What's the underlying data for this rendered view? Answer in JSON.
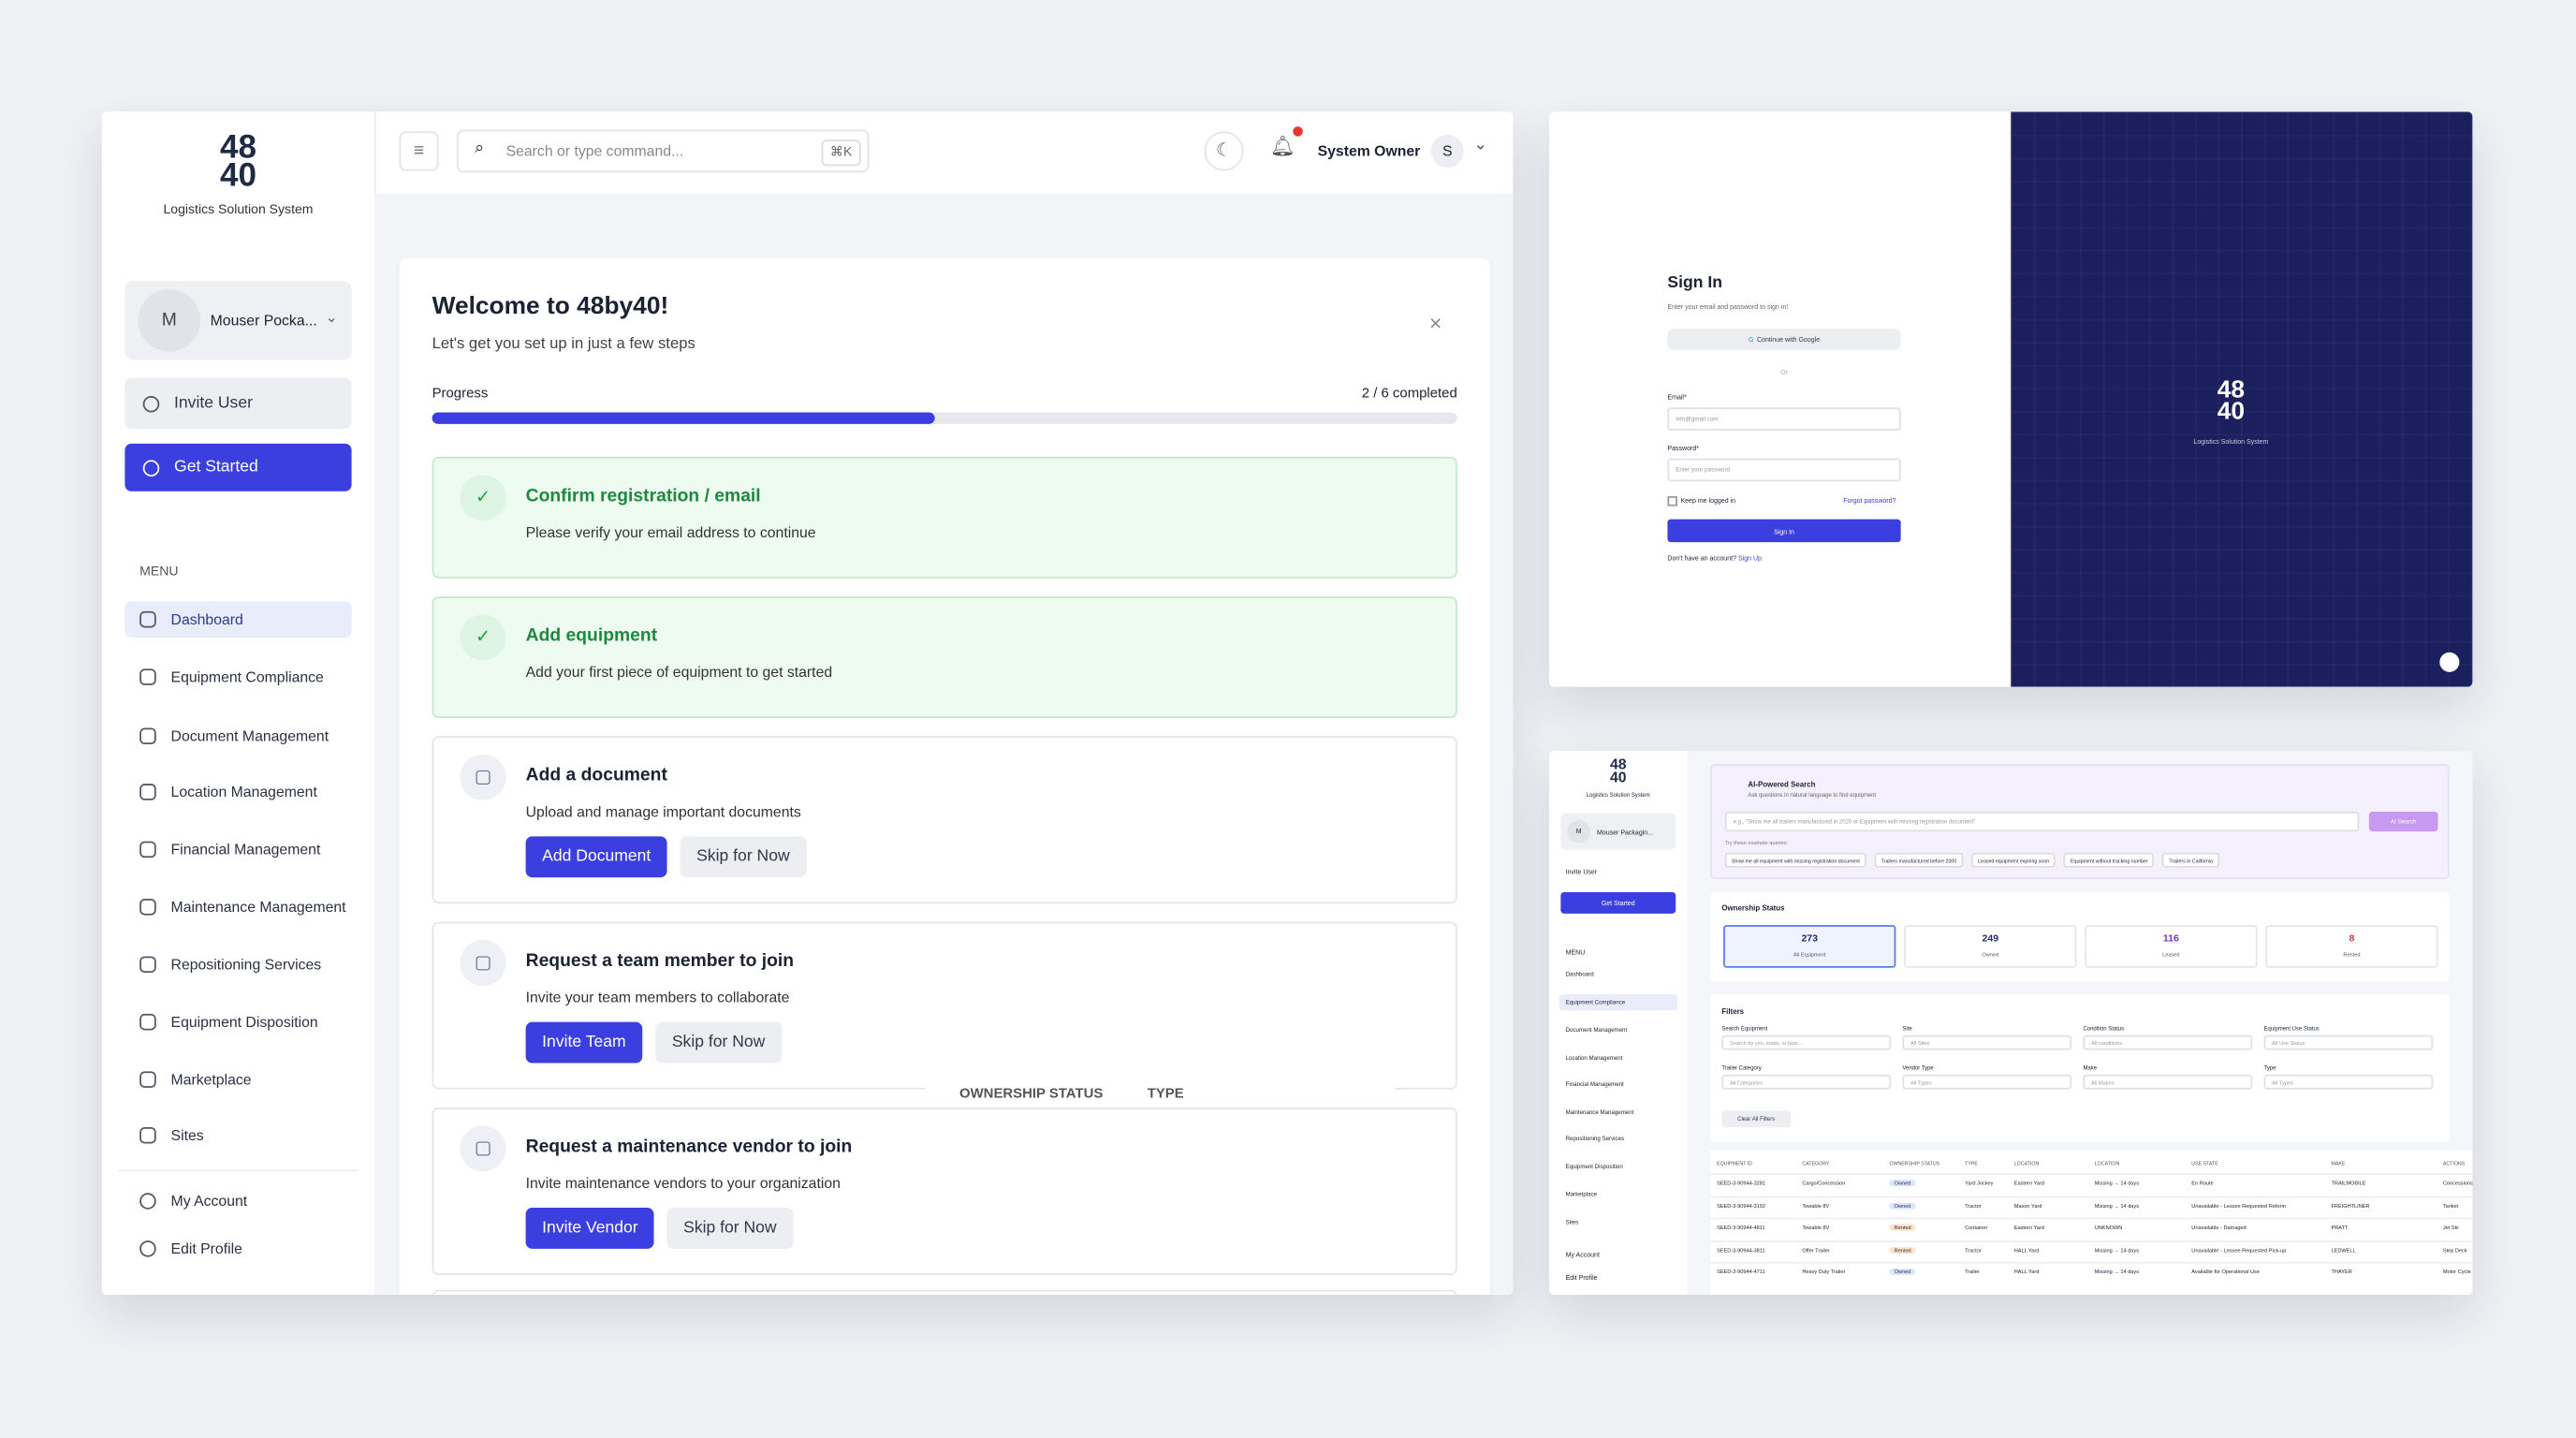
{
  "sidebar": {
    "logo_top": "48",
    "logo_bottom": "40",
    "logo_caption": "Logistics Solution System",
    "account_initial": "M",
    "account_name": "Mouser Pocka...",
    "invite_user": "Invite User",
    "get_started": "Get Started",
    "menu_label": "MENU",
    "menu": [
      "Dashboard",
      "Equipment Compliance",
      "Document Management",
      "Location Management",
      "Financial Management",
      "Maintenance Management",
      "Repositioning Services",
      "Equipment Disposition",
      "Marketplace",
      "Sites"
    ],
    "footer": [
      "My Account",
      "Edit Profile"
    ]
  },
  "header": {
    "search_placeholder": "Search or type command...",
    "shortcut": "⌘K",
    "user_name": "System Owner",
    "user_initial": "S"
  },
  "onboarding": {
    "title": "Welcome to 48by40!",
    "subtitle": "Let's get you set up in just a few steps",
    "progress_label": "Progress",
    "progress_text": "2 / 6 completed",
    "steps": [
      {
        "title": "Confirm registration / email",
        "description": "Please verify your email address to continue",
        "completed": true
      },
      {
        "title": "Add equipment",
        "description": "Add your first piece of equipment to get started",
        "completed": true
      },
      {
        "title": "Add a document",
        "description": "Upload and manage important documents",
        "primary_button": "Add Document",
        "secondary_button": "Skip for Now",
        "completed": false
      },
      {
        "title": "Request a team member to join",
        "description": "Invite your team members to collaborate",
        "primary_button": "Invite Team",
        "secondary_button": "Skip for Now",
        "completed": false
      },
      {
        "title": "Request a maintenance vendor to join",
        "description": "Invite maintenance vendors to your organization",
        "primary_button": "Invite Vendor",
        "secondary_button": "Skip for Now",
        "completed": false
      }
    ],
    "overlay_labels": [
      "OWNERSHIP STATUS",
      "TYPE"
    ]
  },
  "signin": {
    "title": "Sign In",
    "subtitle": "Enter your email and password to sign in!",
    "google": "Continue with Google",
    "or": "Or",
    "email_label": "Email*",
    "email_placeholder": "info@gmail.com",
    "password_label": "Password*",
    "password_placeholder": "Enter your password",
    "keep": "Keep me logged in",
    "forgot": "Forgot password?",
    "button": "Sign In",
    "signup_prompt": "Don't have an account?",
    "signup_link": "Sign Up"
  },
  "dashboard_preview": {
    "account_name": "Mouser Packagin...",
    "ai_search": {
      "title": "AI-Powered Search",
      "subtitle": "Ask questions in natural language to find equipment",
      "placeholder": "e.g., \"Show me all trailers manufactured in 2020 or Equipment with missing registration document\"",
      "button": "AI Search",
      "hint": "Try these example queries:",
      "examples": [
        "Show me all equipment with missing registration document",
        "Trailers manufactured before 2000",
        "Leased equipment expiring soon",
        "Equipment without tracking number",
        "Trailers in California"
      ]
    },
    "ownership": {
      "title": "Ownership Status",
      "stats": [
        {
          "value": 273,
          "label": "All Equipment"
        },
        {
          "value": 249,
          "label": "Owned"
        },
        {
          "value": 116,
          "label": "Leased"
        },
        {
          "value": 8,
          "label": "Rented"
        }
      ]
    },
    "filters": {
      "title": "Filters",
      "fields": [
        {
          "label": "Search Equipment",
          "placeholder": "Search by yes, make, or type..."
        },
        {
          "label": "Site",
          "placeholder": "All Sites"
        },
        {
          "label": "Condition Status",
          "placeholder": "All conditions"
        },
        {
          "label": "Equipment Use Status",
          "placeholder": "All Use Status"
        },
        {
          "label": "Trailer Category",
          "placeholder": "All Categories"
        },
        {
          "label": "Vendor Type",
          "placeholder": "All Types"
        },
        {
          "label": "Make",
          "placeholder": "All Makes"
        },
        {
          "label": "Type",
          "placeholder": "All Types"
        }
      ],
      "clear": "Clear All Filters"
    },
    "table": {
      "headers": [
        "EQUIPMENT ID",
        "CATEGORY",
        "OWNERSHIP STATUS",
        "TYPE",
        "LOCATION",
        "LOCATION",
        "USE STATE",
        "MAKE",
        "ACTIONS"
      ],
      "rows": [
        [
          "SEED-3-90944-3281",
          "Cargo/Concession",
          "Owned",
          "Yard Jockey",
          "Eastern Yard",
          "Missing → 14 days",
          "En Route",
          "TRAILMOBILE",
          "Concessions/Hos"
        ],
        [
          "SEED-3-90944-3192",
          "Towable 8V",
          "Owned",
          "Tractor",
          "Mason Yard",
          "Missing → 14 days",
          "Unavailable - Lessee Requested Reform",
          "FREIGHTLINER",
          "Tanker"
        ],
        [
          "SEED-3-90944-4811",
          "Towable 8V",
          "Rented",
          "Container",
          "Eastern Yard",
          "UNKNOWN",
          "Unavailable - Damaged",
          "PRATT",
          "Jet Ski"
        ],
        [
          "SEED-3-90944-3811",
          "Offer Trailer",
          "Rented",
          "Tractor",
          "HALL Yard",
          "Missing → 14 days",
          "Unavailable - Lessee Requested Pick-up",
          "LEDWELL",
          "Step Deck"
        ],
        [
          "SEED-3-90944-4711",
          "Heavy Duty Trailer",
          "Owned",
          "Trailer",
          "HALL Yard",
          "Missing → 14 days",
          "Available for Operational Use",
          "THAYER",
          "Motor Cycle Trailer"
        ]
      ],
      "chip_colors": [
        "#dce5ff",
        "#dce5ff",
        "#ffe2c9",
        "#ffe2c9",
        "#dce5ff"
      ]
    }
  }
}
